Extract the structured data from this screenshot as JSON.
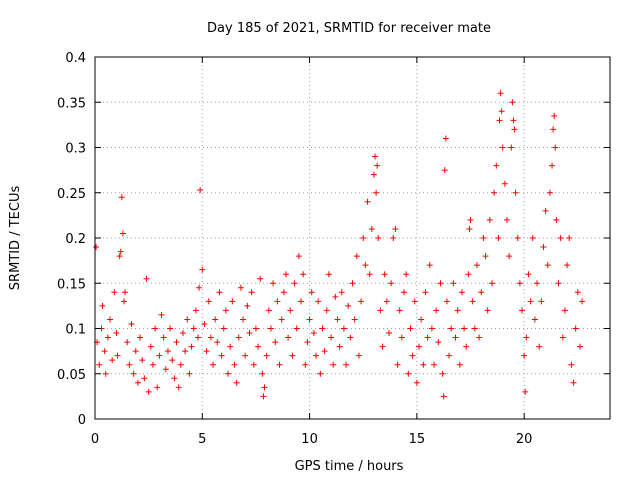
{
  "chart_data": {
    "type": "scatter",
    "title": "Day 185 of 2021, SRMTID for receiver mate",
    "xlabel": "GPS time / hours",
    "ylabel": "SRMTID / TECUs",
    "xlim": [
      0,
      24
    ],
    "ylim": [
      0,
      0.4
    ],
    "x_ticks": [
      0,
      5,
      10,
      15,
      20
    ],
    "x_tick_labels": [
      "0",
      "5",
      "10",
      "15",
      "20"
    ],
    "y_ticks": [
      0,
      0.05,
      0.1,
      0.15,
      0.2,
      0.25,
      0.3,
      0.35,
      0.4
    ],
    "y_tick_labels": [
      "0",
      "0.05",
      "0.1",
      "0.15",
      "0.2",
      "0.25",
      "0.3",
      "0.35",
      "0.4"
    ],
    "grid": true,
    "marker": "plus",
    "color": "#ff0000",
    "series": [
      {
        "name": "SRMTID",
        "points": [
          [
            0.05,
            0.19
          ],
          [
            0.1,
            0.085
          ],
          [
            0.2,
            0.06
          ],
          [
            0.3,
            0.1
          ],
          [
            0.35,
            0.125
          ],
          [
            0.45,
            0.075
          ],
          [
            0.5,
            0.05
          ],
          [
            0.6,
            0.09
          ],
          [
            0.7,
            0.11
          ],
          [
            0.8,
            0.065
          ],
          [
            0.9,
            0.14
          ],
          [
            1.0,
            0.095
          ],
          [
            1.05,
            0.07
          ],
          [
            1.15,
            0.18
          ],
          [
            1.2,
            0.185
          ],
          [
            1.25,
            0.245
          ],
          [
            1.3,
            0.205
          ],
          [
            1.35,
            0.13
          ],
          [
            1.4,
            0.14
          ],
          [
            1.5,
            0.085
          ],
          [
            1.6,
            0.06
          ],
          [
            1.7,
            0.105
          ],
          [
            1.8,
            0.05
          ],
          [
            1.9,
            0.075
          ],
          [
            2.0,
            0.04
          ],
          [
            2.1,
            0.09
          ],
          [
            2.2,
            0.065
          ],
          [
            2.3,
            0.045
          ],
          [
            2.4,
            0.155
          ],
          [
            2.5,
            0.03
          ],
          [
            2.6,
            0.08
          ],
          [
            2.7,
            0.06
          ],
          [
            2.8,
            0.1
          ],
          [
            2.9,
            0.035
          ],
          [
            3.0,
            0.07
          ],
          [
            3.1,
            0.115
          ],
          [
            3.2,
            0.09
          ],
          [
            3.3,
            0.055
          ],
          [
            3.4,
            0.075
          ],
          [
            3.5,
            0.1
          ],
          [
            3.6,
            0.065
          ],
          [
            3.7,
            0.045
          ],
          [
            3.8,
            0.085
          ],
          [
            3.9,
            0.035
          ],
          [
            4.0,
            0.06
          ],
          [
            4.1,
            0.095
          ],
          [
            4.2,
            0.075
          ],
          [
            4.3,
            0.11
          ],
          [
            4.4,
            0.05
          ],
          [
            4.5,
            0.08
          ],
          [
            4.6,
            0.1
          ],
          [
            4.7,
            0.12
          ],
          [
            4.8,
            0.09
          ],
          [
            4.85,
            0.145
          ],
          [
            4.9,
            0.253
          ],
          [
            5.0,
            0.165
          ],
          [
            5.1,
            0.105
          ],
          [
            5.2,
            0.075
          ],
          [
            5.3,
            0.13
          ],
          [
            5.4,
            0.09
          ],
          [
            5.5,
            0.06
          ],
          [
            5.6,
            0.11
          ],
          [
            5.7,
            0.085
          ],
          [
            5.8,
            0.14
          ],
          [
            5.9,
            0.07
          ],
          [
            6.0,
            0.1
          ],
          [
            6.1,
            0.12
          ],
          [
            6.2,
            0.05
          ],
          [
            6.3,
            0.08
          ],
          [
            6.4,
            0.13
          ],
          [
            6.5,
            0.06
          ],
          [
            6.6,
            0.04
          ],
          [
            6.7,
            0.09
          ],
          [
            6.8,
            0.145
          ],
          [
            6.9,
            0.11
          ],
          [
            7.0,
            0.07
          ],
          [
            7.1,
            0.125
          ],
          [
            7.2,
            0.095
          ],
          [
            7.3,
            0.14
          ],
          [
            7.4,
            0.06
          ],
          [
            7.5,
            0.1
          ],
          [
            7.6,
            0.08
          ],
          [
            7.7,
            0.155
          ],
          [
            7.8,
            0.05
          ],
          [
            7.85,
            0.025
          ],
          [
            7.9,
            0.035
          ],
          [
            8.0,
            0.07
          ],
          [
            8.1,
            0.12
          ],
          [
            8.2,
            0.1
          ],
          [
            8.3,
            0.15
          ],
          [
            8.4,
            0.085
          ],
          [
            8.5,
            0.13
          ],
          [
            8.6,
            0.06
          ],
          [
            8.7,
            0.11
          ],
          [
            8.8,
            0.14
          ],
          [
            8.9,
            0.16
          ],
          [
            9.0,
            0.09
          ],
          [
            9.1,
            0.12
          ],
          [
            9.2,
            0.07
          ],
          [
            9.3,
            0.15
          ],
          [
            9.4,
            0.1
          ],
          [
            9.5,
            0.18
          ],
          [
            9.6,
            0.13
          ],
          [
            9.7,
            0.16
          ],
          [
            9.8,
            0.06
          ],
          [
            9.9,
            0.085
          ],
          [
            10.0,
            0.11
          ],
          [
            10.1,
            0.14
          ],
          [
            10.2,
            0.095
          ],
          [
            10.3,
            0.07
          ],
          [
            10.4,
            0.13
          ],
          [
            10.5,
            0.05
          ],
          [
            10.6,
            0.1
          ],
          [
            10.7,
            0.075
          ],
          [
            10.8,
            0.12
          ],
          [
            10.9,
            0.16
          ],
          [
            11.0,
            0.09
          ],
          [
            11.1,
            0.06
          ],
          [
            11.2,
            0.135
          ],
          [
            11.3,
            0.11
          ],
          [
            11.4,
            0.08
          ],
          [
            11.5,
            0.14
          ],
          [
            11.6,
            0.1
          ],
          [
            11.7,
            0.06
          ],
          [
            11.8,
            0.125
          ],
          [
            11.9,
            0.09
          ],
          [
            12.0,
            0.15
          ],
          [
            12.1,
            0.11
          ],
          [
            12.2,
            0.18
          ],
          [
            12.3,
            0.07
          ],
          [
            12.4,
            0.13
          ],
          [
            12.5,
            0.2
          ],
          [
            12.6,
            0.17
          ],
          [
            12.7,
            0.24
          ],
          [
            12.8,
            0.16
          ],
          [
            12.9,
            0.21
          ],
          [
            13.0,
            0.27
          ],
          [
            13.05,
            0.29
          ],
          [
            13.1,
            0.25
          ],
          [
            13.15,
            0.28
          ],
          [
            13.2,
            0.2
          ],
          [
            13.3,
            0.12
          ],
          [
            13.4,
            0.08
          ],
          [
            13.5,
            0.16
          ],
          [
            13.6,
            0.13
          ],
          [
            13.7,
            0.095
          ],
          [
            13.8,
            0.15
          ],
          [
            13.9,
            0.2
          ],
          [
            14.0,
            0.21
          ],
          [
            14.1,
            0.06
          ],
          [
            14.2,
            0.12
          ],
          [
            14.3,
            0.09
          ],
          [
            14.4,
            0.14
          ],
          [
            14.5,
            0.16
          ],
          [
            14.6,
            0.05
          ],
          [
            14.7,
            0.1
          ],
          [
            14.8,
            0.07
          ],
          [
            14.9,
            0.13
          ],
          [
            15.0,
            0.04
          ],
          [
            15.1,
            0.08
          ],
          [
            15.2,
            0.11
          ],
          [
            15.3,
            0.06
          ],
          [
            15.4,
            0.14
          ],
          [
            15.5,
            0.09
          ],
          [
            15.6,
            0.17
          ],
          [
            15.7,
            0.1
          ],
          [
            15.8,
            0.06
          ],
          [
            15.9,
            0.12
          ],
          [
            16.0,
            0.085
          ],
          [
            16.1,
            0.15
          ],
          [
            16.2,
            0.05
          ],
          [
            16.25,
            0.025
          ],
          [
            16.3,
            0.275
          ],
          [
            16.35,
            0.31
          ],
          [
            16.4,
            0.13
          ],
          [
            16.5,
            0.07
          ],
          [
            16.6,
            0.1
          ],
          [
            16.7,
            0.15
          ],
          [
            16.8,
            0.09
          ],
          [
            16.9,
            0.12
          ],
          [
            17.0,
            0.06
          ],
          [
            17.1,
            0.14
          ],
          [
            17.2,
            0.1
          ],
          [
            17.3,
            0.08
          ],
          [
            17.4,
            0.16
          ],
          [
            17.45,
            0.21
          ],
          [
            17.5,
            0.22
          ],
          [
            17.6,
            0.13
          ],
          [
            17.7,
            0.1
          ],
          [
            17.8,
            0.17
          ],
          [
            17.9,
            0.09
          ],
          [
            18.0,
            0.14
          ],
          [
            18.1,
            0.2
          ],
          [
            18.2,
            0.18
          ],
          [
            18.3,
            0.12
          ],
          [
            18.4,
            0.22
          ],
          [
            18.5,
            0.15
          ],
          [
            18.6,
            0.25
          ],
          [
            18.7,
            0.28
          ],
          [
            18.8,
            0.2
          ],
          [
            18.85,
            0.33
          ],
          [
            18.9,
            0.36
          ],
          [
            18.95,
            0.34
          ],
          [
            19.0,
            0.3
          ],
          [
            19.1,
            0.26
          ],
          [
            19.2,
            0.22
          ],
          [
            19.3,
            0.18
          ],
          [
            19.4,
            0.3
          ],
          [
            19.45,
            0.35
          ],
          [
            19.5,
            0.33
          ],
          [
            19.55,
            0.32
          ],
          [
            19.6,
            0.25
          ],
          [
            19.7,
            0.2
          ],
          [
            19.8,
            0.15
          ],
          [
            19.9,
            0.12
          ],
          [
            20.0,
            0.07
          ],
          [
            20.05,
            0.03
          ],
          [
            20.1,
            0.09
          ],
          [
            20.2,
            0.16
          ],
          [
            20.3,
            0.13
          ],
          [
            20.4,
            0.2
          ],
          [
            20.5,
            0.11
          ],
          [
            20.6,
            0.15
          ],
          [
            20.7,
            0.08
          ],
          [
            20.8,
            0.13
          ],
          [
            20.9,
            0.19
          ],
          [
            21.0,
            0.23
          ],
          [
            21.1,
            0.17
          ],
          [
            21.2,
            0.25
          ],
          [
            21.3,
            0.28
          ],
          [
            21.35,
            0.32
          ],
          [
            21.4,
            0.335
          ],
          [
            21.45,
            0.3
          ],
          [
            21.5,
            0.22
          ],
          [
            21.6,
            0.15
          ],
          [
            21.7,
            0.2
          ],
          [
            21.8,
            0.09
          ],
          [
            21.9,
            0.12
          ],
          [
            22.0,
            0.17
          ],
          [
            22.1,
            0.2
          ],
          [
            22.2,
            0.06
          ],
          [
            22.3,
            0.04
          ],
          [
            22.4,
            0.1
          ],
          [
            22.5,
            0.14
          ],
          [
            22.6,
            0.08
          ],
          [
            22.7,
            0.13
          ]
        ]
      }
    ]
  }
}
